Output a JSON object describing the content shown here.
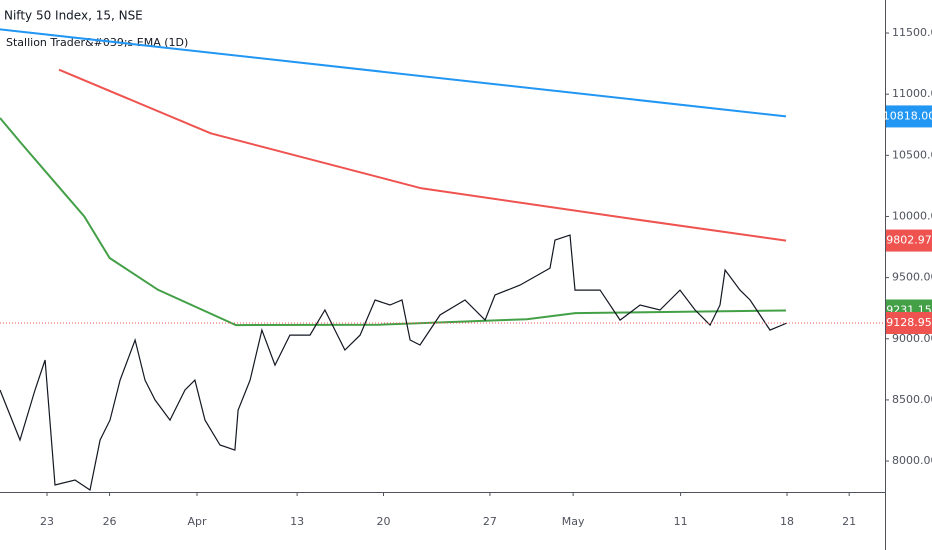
{
  "chart_data": {
    "type": "line",
    "title": "Nifty 50 Index, 15, NSE",
    "subtitle": "Stallion Trader&#039;s EMA (1D)",
    "xlim": [
      0,
      42
    ],
    "ylim": [
      7747,
      11770
    ],
    "xticks": [
      {
        "value": 2.23,
        "label": "23"
      },
      {
        "value": 5.2,
        "label": "26"
      },
      {
        "value": 9.35,
        "label": "Apr"
      },
      {
        "value": 14.1,
        "label": "13"
      },
      {
        "value": 18.2,
        "label": "20"
      },
      {
        "value": 23.25,
        "label": "27"
      },
      {
        "value": 27.2,
        "label": "May"
      },
      {
        "value": 32.3,
        "label": "11"
      },
      {
        "value": 37.35,
        "label": "18"
      },
      {
        "value": 40.3,
        "label": "21"
      }
    ],
    "yticks": [
      {
        "value": 8000,
        "label": "8000.00"
      },
      {
        "value": 8500,
        "label": "8500.00"
      },
      {
        "value": 9000,
        "label": "9000.00"
      },
      {
        "value": 9500,
        "label": "9500.00"
      },
      {
        "value": 10000,
        "label": "10000.00"
      },
      {
        "value": 10500,
        "label": "10500.00"
      },
      {
        "value": 11000,
        "label": "11000.00"
      },
      {
        "value": 11500,
        "label": "11500.00"
      }
    ],
    "series": [
      {
        "color": "#2196f3",
        "x": [
          0,
          37.3
        ],
        "values": [
          11530,
          10818
        ],
        "last_label": {
          "value": 10818,
          "label": "10818.00"
        }
      },
      {
        "color": "#ef5350",
        "x": [
          2.8,
          10,
          20,
          30,
          37.3
        ],
        "values": [
          11200,
          10680,
          10230,
          9980,
          9802.97
        ],
        "last_label": {
          "value": 9802.97,
          "label": "9802.97"
        }
      },
      {
        "color": "#43a047",
        "x": [
          0,
          1,
          2.5,
          4,
          5.2,
          7.5,
          11.2,
          18,
          25,
          27.3,
          37.3
        ],
        "values": [
          10805,
          10600,
          10300,
          10000,
          9660,
          9400,
          9112,
          9115,
          9160,
          9210,
          9231.15
        ],
        "last_label": {
          "value": 9231.15,
          "label": "9231.15"
        }
      },
      {
        "color": "#131722",
        "x": [
          0,
          0.95,
          1.66,
          2.14,
          2.61,
          3.56,
          4.27,
          4.75,
          5.22,
          5.7,
          6.41,
          6.88,
          7.36,
          8.07,
          8.78,
          9.25,
          9.73,
          10.44,
          11.15,
          11.3,
          11.87,
          12.43,
          13.05,
          13.76,
          14.71,
          15.42,
          16.37,
          17.09,
          17.8,
          18.51,
          19.08,
          19.46,
          19.93,
          20.88,
          22.07,
          23.02,
          23.49,
          24.68,
          26.1,
          26.34,
          27.05,
          27.29,
          28.48,
          29.43,
          30.38,
          31.32,
          32.27,
          32.99,
          33.7,
          34.17,
          34.41,
          35.12,
          35.6,
          36.54,
          37.35
        ],
        "values": [
          8581,
          8172,
          8581,
          8826,
          7804,
          7845,
          7763,
          8172,
          8335,
          8662,
          8990,
          8662,
          8499,
          8335,
          8581,
          8662,
          8335,
          8131,
          8090,
          8417,
          8662,
          9071,
          8785,
          9030,
          9030,
          9235,
          8908,
          9030,
          9317,
          9276,
          9317,
          8990,
          8949,
          9194,
          9317,
          9153,
          9358,
          9439,
          9578,
          9807,
          9848,
          9398,
          9398,
          9153,
          9276,
          9235,
          9398,
          9235,
          9112,
          9276,
          9562,
          9398,
          9317,
          9071,
          9128.95
        ],
        "last_label": {
          "value": 9128.95,
          "label": "9128.95"
        }
      }
    ],
    "grid": false
  }
}
